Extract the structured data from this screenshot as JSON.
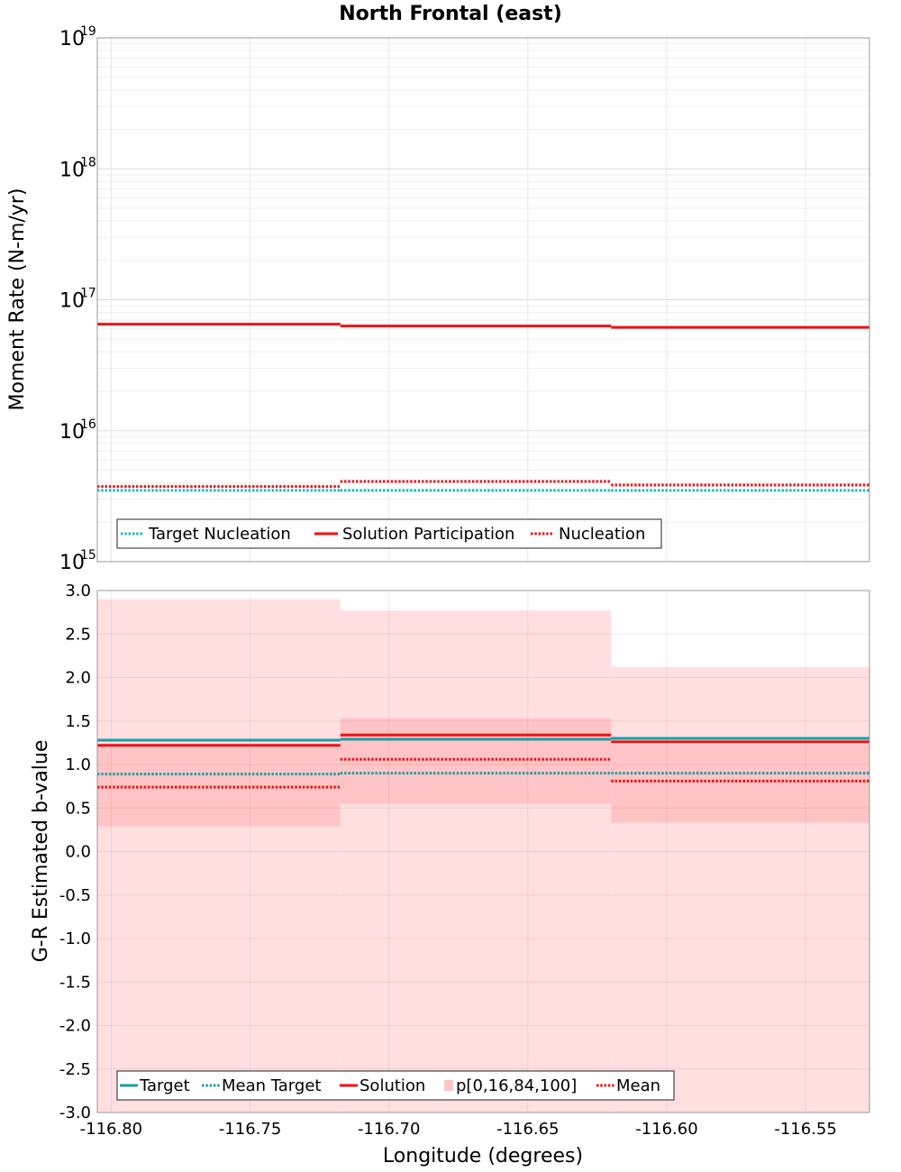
{
  "title": "North Frontal (east)",
  "xlabel": "Longitude (degrees)",
  "colors": {
    "target": "#1a9ea5",
    "target_nucleation": "#18b8c8",
    "solution": "#ee1111",
    "band_outer": "#ffdfe0",
    "band_inner": "#ffc4c6",
    "grid": "#e6e6e6",
    "frame": "#999999"
  },
  "chart_data": [
    {
      "type": "line",
      "panel": "moment-rate",
      "ylabel": "Moment Rate (N-m/yr)",
      "yscale": "log",
      "ylim": [
        1000000000000000.0,
        1e+19
      ],
      "xlim": [
        -116.805,
        -116.527
      ],
      "x_ticks": [
        "-116.80",
        "-116.75",
        "-116.70",
        "-116.65",
        "-116.60",
        "-116.55"
      ],
      "y_ticks": [
        {
          "base": "10",
          "exp": "15"
        },
        {
          "base": "10",
          "exp": "16"
        },
        {
          "base": "10",
          "exp": "17"
        },
        {
          "base": "10",
          "exp": "18"
        },
        {
          "base": "10",
          "exp": "19"
        }
      ],
      "grid": true,
      "legend_position": "bottom-left",
      "bin_edges": [
        -116.805,
        -116.7175,
        -116.62,
        -116.527
      ],
      "series": [
        {
          "name": "Target Nucleation",
          "style": "dotted",
          "color": "#18b8c8",
          "values": [
            3500000000000000.0,
            3500000000000000.0,
            3500000000000000.0
          ]
        },
        {
          "name": "Solution Participation",
          "style": "solid",
          "color": "#ee1111",
          "values": [
            6.5e+16,
            6.3e+16,
            6.15e+16
          ]
        },
        {
          "name": "Nucleation",
          "style": "dotted",
          "color": "#ee1111",
          "values": [
            3750000000000000.0,
            4100000000000000.0,
            3850000000000000.0
          ]
        }
      ]
    },
    {
      "type": "line",
      "panel": "b-value",
      "ylabel": "G-R Estimated b-value",
      "xlabel": "Longitude (degrees)",
      "ylim": [
        -3.0,
        3.0
      ],
      "xlim": [
        -116.805,
        -116.527
      ],
      "x_ticks": [
        "-116.80",
        "-116.75",
        "-116.70",
        "-116.65",
        "-116.60",
        "-116.55"
      ],
      "y_ticks": [
        "3.0",
        "2.5",
        "2.0",
        "1.5",
        "1.0",
        "0.5",
        "0.0",
        "-0.5",
        "-1.0",
        "-1.5",
        "-2.0",
        "-2.5",
        "-3.0"
      ],
      "grid": true,
      "legend_position": "bottom-left",
      "bin_edges": [
        -116.805,
        -116.7175,
        -116.62,
        -116.527
      ],
      "bands": {
        "name": "p[0,16,84,100]",
        "p0": [
          -3.0,
          -3.0,
          -3.0
        ],
        "p100": [
          2.9,
          2.77,
          2.12
        ],
        "p16": [
          0.29,
          0.55,
          0.33
        ],
        "p84": [
          1.22,
          1.53,
          1.23
        ]
      },
      "series": [
        {
          "name": "Target",
          "style": "solid",
          "color": "#1a9ea5",
          "values": [
            1.28,
            1.29,
            1.3
          ]
        },
        {
          "name": "Mean Target",
          "style": "dotted",
          "color": "#1a9ea5",
          "values": [
            0.89,
            0.9,
            0.9
          ]
        },
        {
          "name": "Solution",
          "style": "solid",
          "color": "#ee1111",
          "values": [
            1.22,
            1.34,
            1.26
          ]
        },
        {
          "name": "Mean",
          "style": "dotted",
          "color": "#ee1111",
          "values": [
            0.74,
            1.06,
            0.81
          ]
        }
      ]
    }
  ]
}
